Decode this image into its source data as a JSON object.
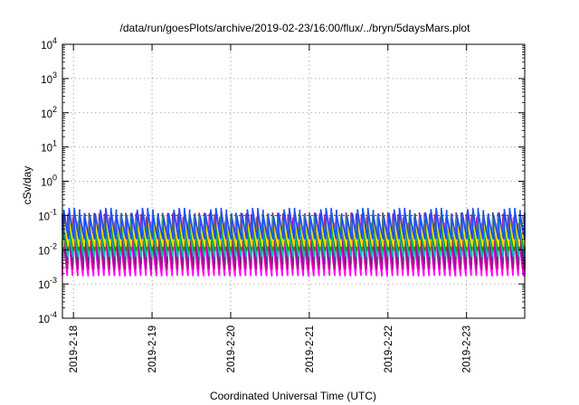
{
  "chart_data": {
    "type": "line",
    "title": "/data/run/goesPlots/archive/2019-02-23/16:00/flux/../bryn/5daysMars.plot",
    "xlabel": "Coordinated Universal Time (UTC)",
    "ylabel": "cSv/day",
    "scale_y": "log",
    "ylim": [
      0.0001,
      10000
    ],
    "xlim": [
      -0.14,
      5.74
    ],
    "x_unit": "days since 2019-2-18 00:00 UTC",
    "y_ticks": [
      {
        "value": 0.0001,
        "base": "10",
        "exp": "-4"
      },
      {
        "value": 0.001,
        "base": "10",
        "exp": "-3"
      },
      {
        "value": 0.01,
        "base": "10",
        "exp": "-2"
      },
      {
        "value": 0.1,
        "base": "10",
        "exp": "-1"
      },
      {
        "value": 1,
        "base": "10",
        "exp": "0"
      },
      {
        "value": 10,
        "base": "10",
        "exp": "1"
      },
      {
        "value": 100,
        "base": "10",
        "exp": "2"
      },
      {
        "value": 1000,
        "base": "10",
        "exp": "3"
      },
      {
        "value": 10000,
        "base": "10",
        "exp": "4"
      }
    ],
    "x_ticks": [
      {
        "value": 0,
        "label": "2019-2-18"
      },
      {
        "value": 1,
        "label": "2019-2-19"
      },
      {
        "value": 2,
        "label": "2019-2-20"
      },
      {
        "value": 3,
        "label": "2019-2-21"
      },
      {
        "value": 4,
        "label": "2019-2-22"
      },
      {
        "value": 5,
        "label": "2019-2-23"
      }
    ],
    "grid": true,
    "threshold": {
      "value": 0.1,
      "color": "#ff0000",
      "style": "dotted"
    },
    "period_days": 0.0667,
    "series": [
      {
        "color": "#ff00ff",
        "peak": 0.09,
        "trough": 0.0016
      },
      {
        "color": "#c0007a",
        "peak": 0.11,
        "trough": 0.0025
      },
      {
        "color": "#7a2a8a",
        "peak": 0.12,
        "trough": 0.0035
      },
      {
        "color": "#00bfbf",
        "peak": 0.1,
        "trough": 0.006
      },
      {
        "color": "#00a000",
        "peak": 0.11,
        "trough": 0.009
      },
      {
        "color": "#ffd700",
        "peak": 0.12,
        "trough": 0.012
      },
      {
        "color": "#2050ff",
        "peak": 0.16,
        "trough": 0.02
      }
    ]
  }
}
